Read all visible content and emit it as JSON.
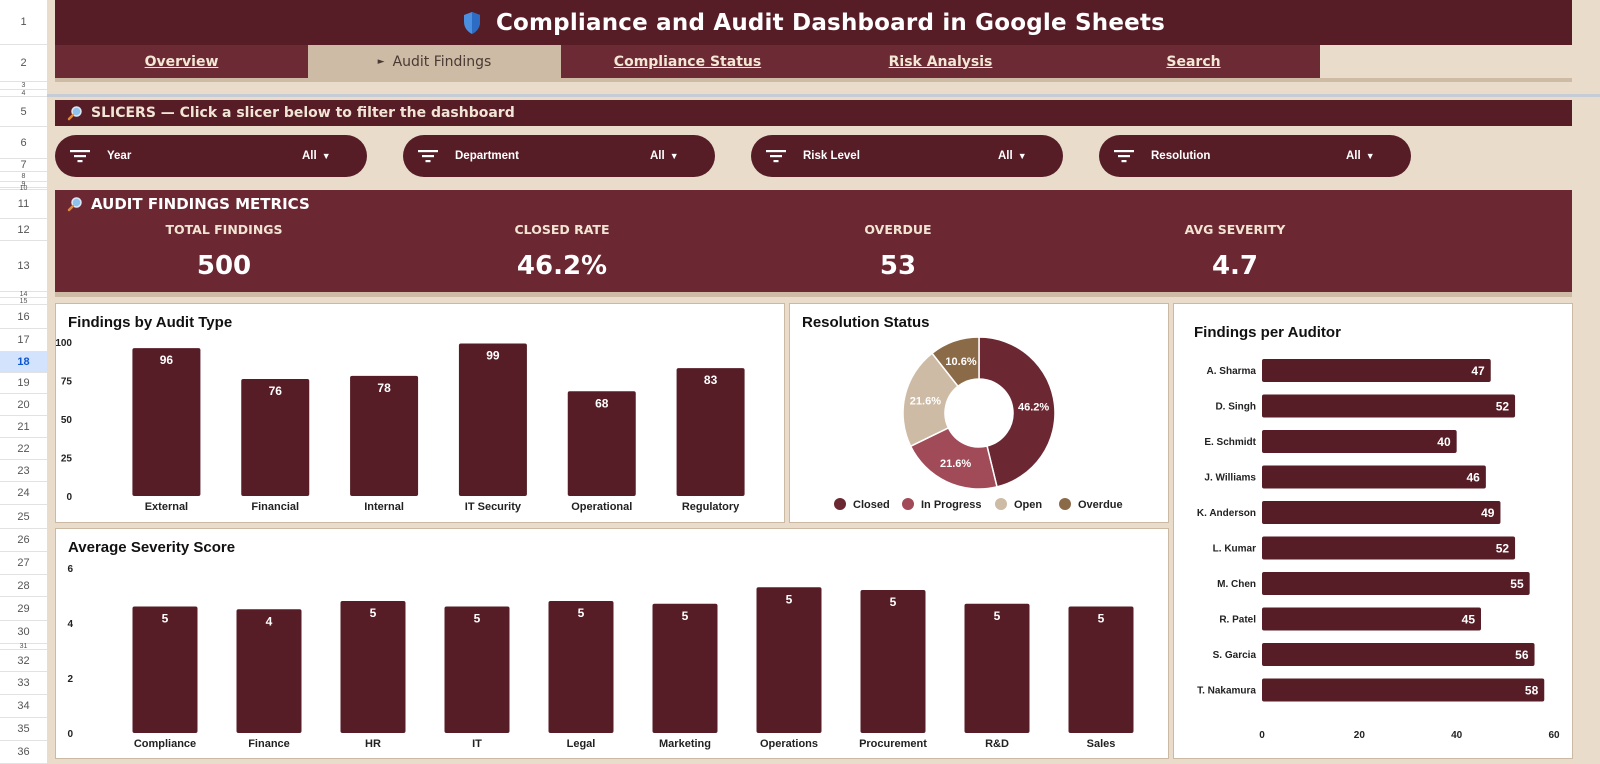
{
  "row_numbers": [
    "1",
    "2",
    "3",
    "4",
    "5",
    "6",
    "7",
    "8",
    "9",
    "10",
    "11",
    "12",
    "13",
    "14",
    "15",
    "16",
    "17",
    "18",
    "19",
    "20",
    "21",
    "22",
    "23",
    "24",
    "25",
    "26",
    "27",
    "28",
    "29",
    "30",
    "31",
    "32",
    "33",
    "34",
    "35",
    "36"
  ],
  "selected_row": "18",
  "header": {
    "title": "Compliance and Audit Dashboard in Google Sheets",
    "icon": "shield-icon",
    "icon_color": "#4a8fe0"
  },
  "tabs": [
    {
      "label": "Overview",
      "active": false
    },
    {
      "label": "Audit Findings",
      "active": true
    },
    {
      "label": "Compliance Status",
      "active": false
    },
    {
      "label": "Risk Analysis",
      "active": false
    },
    {
      "label": "Search",
      "active": false
    }
  ],
  "slicer_section": {
    "title": "SLICERS — Click a slicer below to filter the dashboard",
    "icon": "magnifier-icon"
  },
  "slicers": [
    {
      "label": "Year",
      "value": "All"
    },
    {
      "label": "Department",
      "value": "All"
    },
    {
      "label": "Risk Level",
      "value": "All"
    },
    {
      "label": "Resolution",
      "value": "All"
    }
  ],
  "metrics_section": {
    "title": "AUDIT FINDINGS METRICS",
    "icon": "magnifier-icon"
  },
  "metrics": [
    {
      "label": "TOTAL FINDINGS",
      "value": "500"
    },
    {
      "label": "CLOSED RATE",
      "value": "46.2%"
    },
    {
      "label": "OVERDUE",
      "value": "53"
    },
    {
      "label": "AVG SEVERITY",
      "value": "4.7"
    }
  ],
  "colors": {
    "primary": "#561d26",
    "metrics_bg": "#6b2832",
    "page_bg": "#e9dccb",
    "accent_tan": "#cdbba5",
    "bar": "#561d26"
  },
  "chart_data": [
    {
      "id": "audit-type",
      "type": "bar",
      "title": "Findings by Audit Type",
      "categories": [
        "External",
        "Financial",
        "Internal",
        "IT Security",
        "Operational",
        "Regulatory"
      ],
      "values": [
        96,
        76,
        78,
        99,
        68,
        83
      ],
      "data_labels": [
        "96",
        "76",
        "78",
        "99",
        "68",
        "83"
      ],
      "ylim": [
        0,
        100
      ],
      "yticks": [
        "0",
        "25",
        "50",
        "75",
        "100"
      ],
      "grid": false,
      "color": "#561d26"
    },
    {
      "id": "resolution",
      "type": "pie",
      "donut": true,
      "title": "Resolution Status",
      "categories": [
        "Closed",
        "In Progress",
        "Open",
        "Overdue"
      ],
      "values": [
        46.2,
        21.6,
        21.6,
        10.6
      ],
      "data_labels": [
        "46.2%",
        "21.6%",
        "21.6%",
        "10.6%"
      ],
      "colors": [
        "#6b2832",
        "#a14a58",
        "#cdbba5",
        "#8b6a48"
      ],
      "legend": "bottom"
    },
    {
      "id": "auditor",
      "type": "bar",
      "orientation": "horizontal",
      "title": "Findings per Auditor",
      "categories": [
        "A. Sharma",
        "D. Singh",
        "E. Schmidt",
        "J. Williams",
        "K. Anderson",
        "L. Kumar",
        "M. Chen",
        "R. Patel",
        "S. Garcia",
        "T. Nakamura"
      ],
      "values": [
        47,
        52,
        40,
        46,
        49,
        52,
        55,
        45,
        56,
        58
      ],
      "data_labels": [
        "47",
        "52",
        "40",
        "46",
        "49",
        "52",
        "55",
        "45",
        "56",
        "58"
      ],
      "xlim": [
        0,
        60
      ],
      "xticks": [
        "0",
        "20",
        "40",
        "60"
      ],
      "color": "#561d26"
    },
    {
      "id": "severity",
      "type": "bar",
      "title": "Average Severity Score",
      "categories": [
        "Compliance",
        "Finance",
        "HR",
        "IT",
        "Legal",
        "Marketing",
        "Operations",
        "Procurement",
        "R&D",
        "Sales"
      ],
      "values": [
        4.6,
        4.5,
        4.8,
        4.6,
        4.8,
        4.7,
        5.3,
        5.2,
        4.7,
        4.6
      ],
      "data_labels": [
        "5",
        "4",
        "5",
        "5",
        "5",
        "5",
        "5",
        "5",
        "5",
        "5"
      ],
      "ylim": [
        0,
        6
      ],
      "yticks": [
        "0",
        "2",
        "4",
        "6"
      ],
      "color": "#561d26"
    }
  ]
}
